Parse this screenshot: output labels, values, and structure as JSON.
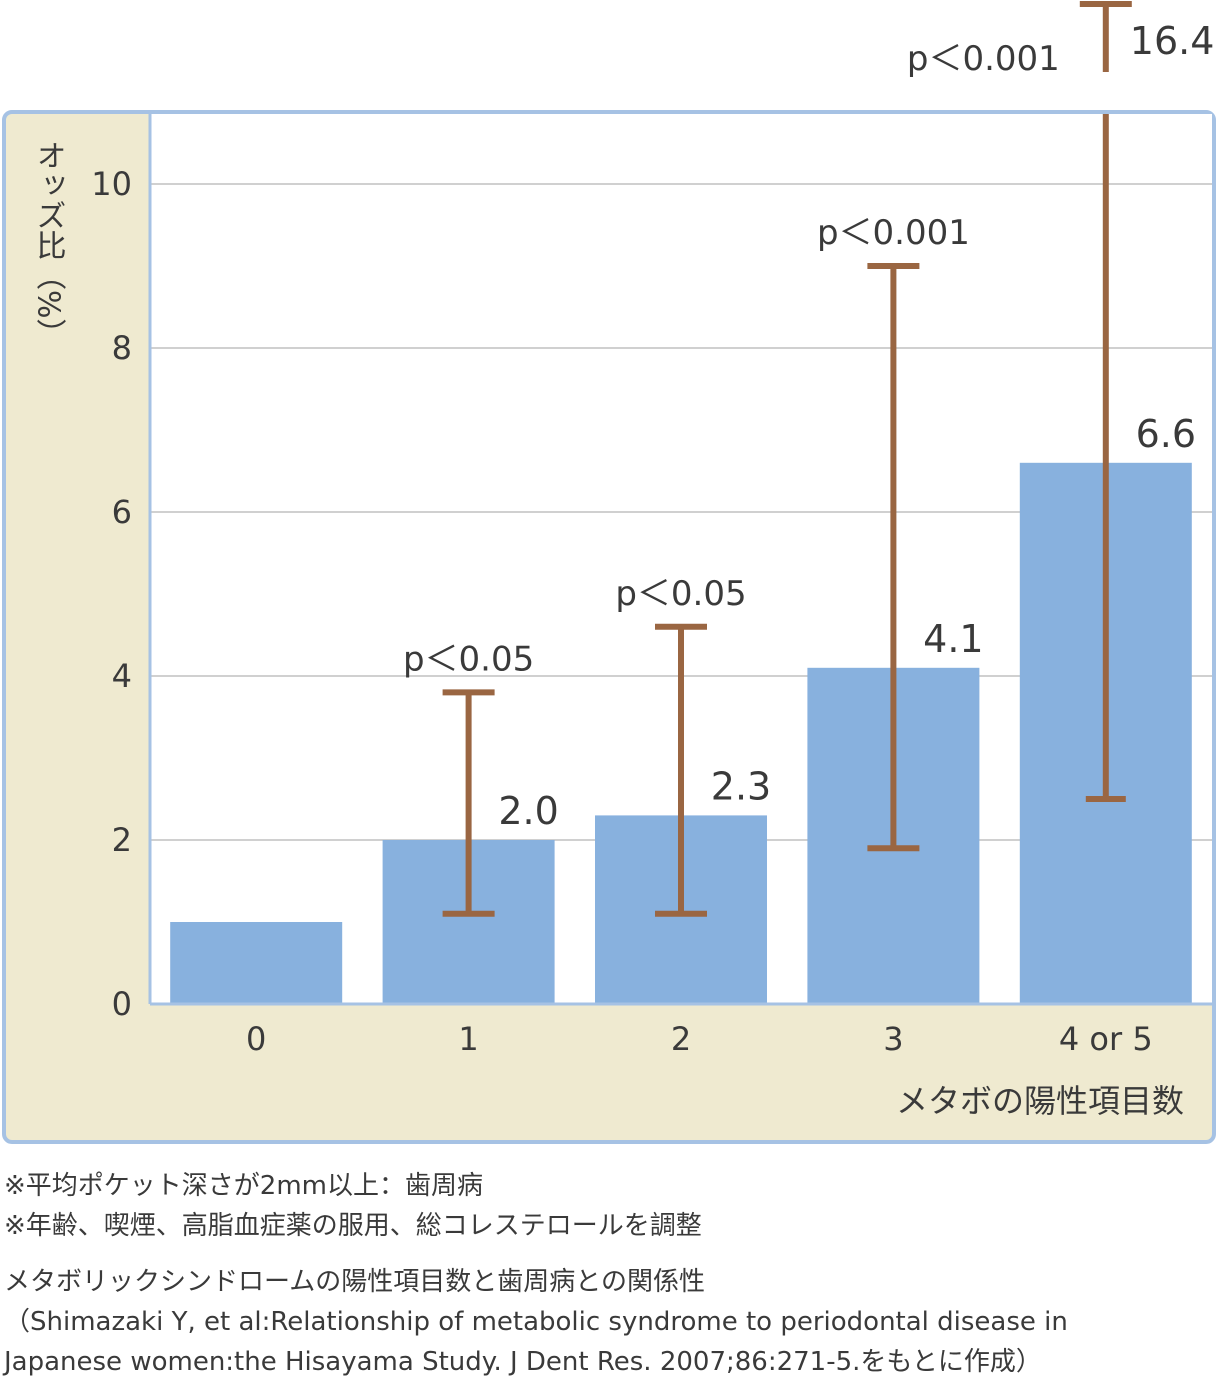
{
  "chart_data": {
    "type": "bar",
    "ylabel": "オッズ比（%）",
    "xlabel": "メタボの陽性項目数",
    "categories": [
      "0",
      "1",
      "2",
      "3",
      "4 or 5"
    ],
    "values": [
      1.0,
      2.0,
      2.3,
      4.1,
      6.6
    ],
    "value_labels": [
      "",
      "2.0",
      "2.3",
      "4.1",
      "6.6"
    ],
    "ci_lower": [
      null,
      1.1,
      1.1,
      1.9,
      2.5
    ],
    "ci_upper": [
      null,
      3.8,
      4.6,
      9.0,
      16.4
    ],
    "ci_upper_label": [
      "",
      "",
      "",
      "",
      "16.4"
    ],
    "p_labels": [
      "",
      "p＜0.05",
      "p＜0.05",
      "p＜0.001",
      "p＜0.001"
    ],
    "yticks": [
      "0",
      "2",
      "4",
      "6",
      "8",
      "10"
    ],
    "ylim": [
      0,
      11
    ],
    "grid": true,
    "colors": {
      "bar": "#88b1de",
      "error": "#9a6642",
      "panel": "#efead0",
      "frame": "#a6c2e4",
      "grid": "#d0d0d0",
      "axis": "#a6c2e4"
    }
  },
  "notes": [
    "※平均ポケット深さが2mm以上：歯周病",
    "※年齢、喫煙、高脂血症薬の服用、総コレステロールを調整"
  ],
  "caption": [
    "メタボリックシンドロームの陽性項目数と歯周病との関係性",
    "（Shimazaki Y, et al:Relationship of metabolic syndrome to periodontal disease in",
    "Japanese women:the Hisayama Study. J Dent Res. 2007;86:271-5.をもとに作成）"
  ]
}
